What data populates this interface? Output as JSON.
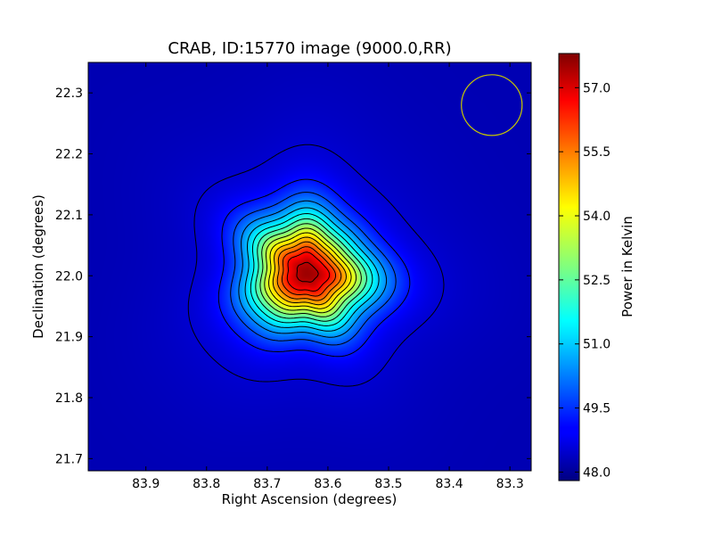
{
  "chart_data": {
    "type": "heatmap",
    "title": "CRAB, ID:15770 image (9000.0,RR)",
    "xlabel": "Right Ascension (degrees)",
    "ylabel": "Declination (degrees)",
    "colorbar_label": "Power in Kelvin",
    "xlim": [
      83.995,
      83.265
    ],
    "ylim": [
      21.68,
      22.35
    ],
    "x_ticks": [
      {
        "value": 83.9,
        "label": "83.9"
      },
      {
        "value": 83.8,
        "label": "83.8"
      },
      {
        "value": 83.7,
        "label": "83.7"
      },
      {
        "value": 83.6,
        "label": "83.6"
      },
      {
        "value": 83.5,
        "label": "83.5"
      },
      {
        "value": 83.4,
        "label": "83.4"
      },
      {
        "value": 83.3,
        "label": "83.3"
      }
    ],
    "y_ticks": [
      {
        "value": 22.3,
        "label": "22.3"
      },
      {
        "value": 22.2,
        "label": "22.2"
      },
      {
        "value": 22.1,
        "label": "22.1"
      },
      {
        "value": 22.0,
        "label": "22.0"
      },
      {
        "value": 21.9,
        "label": "21.9"
      },
      {
        "value": 21.8,
        "label": "21.8"
      },
      {
        "value": 21.7,
        "label": "21.7"
      }
    ],
    "colorbar_range": [
      47.8,
      57.8
    ],
    "colorbar_ticks": [
      {
        "value": 57.0,
        "label": "57.0"
      },
      {
        "value": 55.5,
        "label": "55.5"
      },
      {
        "value": 54.0,
        "label": "54.0"
      },
      {
        "value": 52.5,
        "label": "52.5"
      },
      {
        "value": 51.0,
        "label": "51.0"
      },
      {
        "value": 49.5,
        "label": "49.5"
      },
      {
        "value": 48.0,
        "label": "48.0"
      }
    ],
    "colormap": "jet",
    "source": {
      "ra": 83.635,
      "dec": 22.005,
      "peak": 57.6
    },
    "background_level": 48.3,
    "beam": {
      "ra": 83.33,
      "dec": 22.28,
      "radius_deg": 0.05,
      "color": "#c8c800"
    },
    "contour_levels": [
      48.6,
      49.2,
      49.8,
      50.4,
      51.0,
      51.6,
      52.2,
      52.8,
      53.4,
      54.0,
      54.6,
      55.2,
      55.8,
      56.4,
      57.2
    ]
  }
}
